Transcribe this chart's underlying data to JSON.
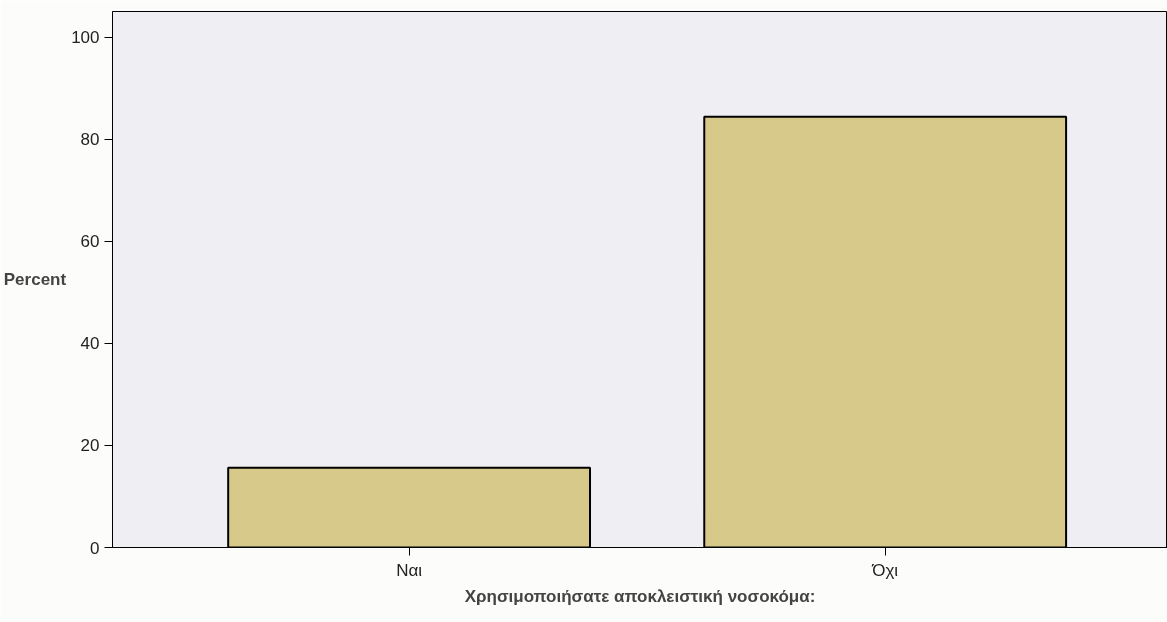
{
  "chart_data": {
    "type": "bar",
    "xlabel": "Χρησιμοποιήσατε αποκλειστική νοσοκόμα:",
    "ylabel": "Percent",
    "categories": [
      "Ναι",
      "Όχι"
    ],
    "values": [
      15.6,
      84.4
    ],
    "color": "#d6c98a",
    "ylim": [
      0,
      105
    ],
    "yticks": [
      0,
      20,
      40,
      60,
      80,
      100
    ],
    "grid": false
  }
}
